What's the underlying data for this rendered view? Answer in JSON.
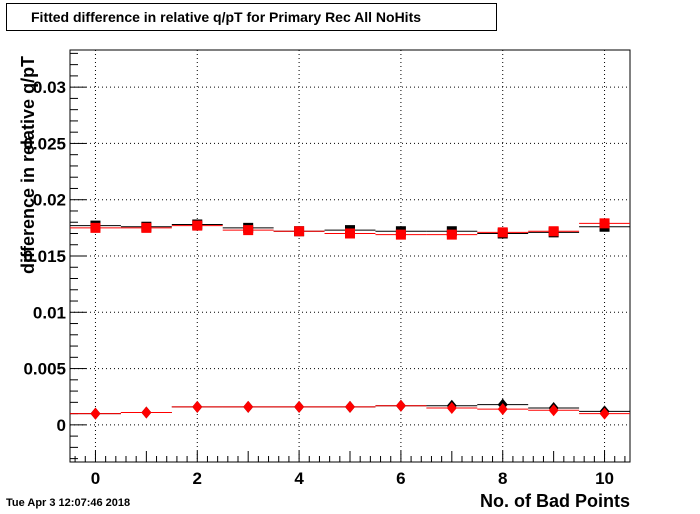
{
  "header": {
    "title": "Fitted difference in relative q/pT for Primary Rec All NoHits",
    "timestamp": "Tue Apr  3 12:07:46 2018"
  },
  "chart_data": {
    "type": "scatter",
    "title": "Fitted difference in relative q/pT for Primary Rec All NoHits",
    "xlabel": "No. of Bad Points",
    "ylabel": "difference in relative q/pT",
    "xlim": [
      -0.5,
      10.5
    ],
    "ylim": [
      -0.0033,
      0.0333
    ],
    "xticks": [
      0,
      2,
      4,
      6,
      8,
      10
    ],
    "xtick_labels": [
      "0",
      "2",
      "4",
      "6",
      "8",
      "10"
    ],
    "yticks": [
      0,
      0.005,
      0.01,
      0.015,
      0.02,
      0.025,
      0.03
    ],
    "ytick_labels": [
      "0",
      "0.005",
      "0.01",
      "0.015",
      "0.02",
      "0.025",
      "0.03"
    ],
    "grid": true,
    "x": [
      0,
      1,
      2,
      3,
      4,
      5,
      6,
      7,
      8,
      9,
      10
    ],
    "series": [
      {
        "marker": "square",
        "color": "#000000",
        "values": [
          0.0177,
          0.0176,
          0.0178,
          0.0175,
          0.0172,
          0.0173,
          0.0172,
          0.0172,
          0.017,
          0.0171,
          0.0176
        ]
      },
      {
        "marker": "square",
        "color": "#ff0000",
        "values": [
          0.0175,
          0.0175,
          0.0177,
          0.0173,
          0.0172,
          0.017,
          0.0169,
          0.0169,
          0.0171,
          0.0172,
          0.0179
        ]
      },
      {
        "marker": "diamond",
        "color": "#000000",
        "values": [
          0.001,
          0.0011,
          0.0016,
          0.0016,
          0.0016,
          0.0016,
          0.0017,
          0.0017,
          0.0018,
          0.0015,
          0.0012
        ]
      },
      {
        "marker": "diamond",
        "color": "#ff0000",
        "values": [
          0.001,
          0.0011,
          0.0016,
          0.0016,
          0.0016,
          0.0016,
          0.0017,
          0.0015,
          0.0014,
          0.0013,
          0.001
        ]
      }
    ]
  }
}
